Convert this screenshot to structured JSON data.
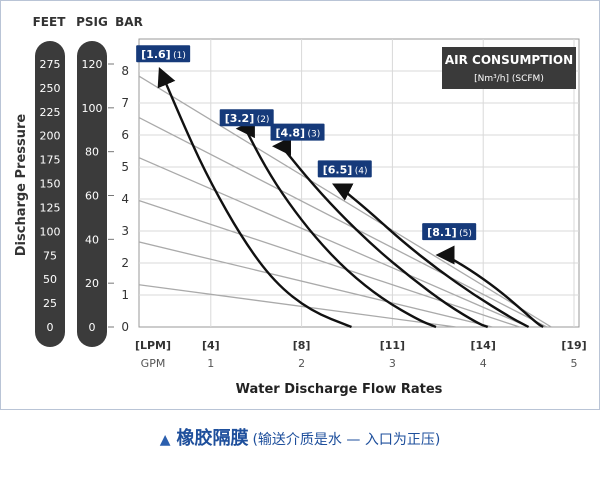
{
  "header": {
    "feet_label": "FEET",
    "psig_label": "PSIG",
    "bar_label": "BAR"
  },
  "y_axis_title": "Discharge Pressure",
  "feet_ticks": [
    "275",
    "250",
    "225",
    "200",
    "175",
    "150",
    "125",
    "100",
    "75",
    "50",
    "25",
    "0"
  ],
  "psig_ticks": [
    "120",
    "100",
    "80",
    "60",
    "40",
    "20",
    "0"
  ],
  "air_box": {
    "title": "AIR CONSUMPTION",
    "unit_html": "[Nm³/h] (SCFM)"
  },
  "colors": {
    "navy": "#163a7a",
    "bar_pill": "#3b3b3b",
    "grid": "#d9d9d9",
    "line_gray": "#aaaaaa",
    "curve": "#111111",
    "caption_blue": "#1e4f9c"
  },
  "caption": {
    "title": "橡胶隔膜",
    "subtitle": "(输送介质是水 — 入口为正压)"
  },
  "chart_data": {
    "type": "line",
    "xlabel": "Water Discharge Flow Rates",
    "ylabel": "Discharge Pressure",
    "x_unit_label": "GPM",
    "x_lpm_unit_label": "[LPM]",
    "xlim": [
      0,
      5
    ],
    "ylim": [
      0,
      8.5
    ],
    "x_ticks": [
      "1",
      "2",
      "3",
      "4",
      "5"
    ],
    "x_lpm_ticks": [
      "[4]",
      "[8]",
      "[11]",
      "[14]",
      "[19]"
    ],
    "x_lpm_tick_values": [
      1,
      2,
      3,
      4,
      5
    ],
    "y_ticks": [
      "0",
      "1",
      "2",
      "3",
      "4",
      "5",
      "6",
      "7",
      "8"
    ],
    "grid": true,
    "series": [
      {
        "name": "[1.6] (1)",
        "points": [
          [
            0.47,
            7.85
          ],
          [
            0.75,
            6.0
          ],
          [
            1.0,
            4.5
          ],
          [
            1.35,
            2.75
          ],
          [
            1.7,
            1.4
          ],
          [
            2.1,
            0.5
          ],
          [
            2.55,
            0
          ]
        ]
      },
      {
        "name": "[3.2] (2)",
        "points": [
          [
            1.38,
            6.2
          ],
          [
            1.6,
            5.0
          ],
          [
            1.85,
            3.9
          ],
          [
            2.15,
            2.8
          ],
          [
            2.5,
            1.75
          ],
          [
            2.9,
            0.85
          ],
          [
            3.3,
            0.2
          ],
          [
            3.48,
            0
          ]
        ]
      },
      {
        "name": "[4.8] (3)",
        "points": [
          [
            1.78,
            5.65
          ],
          [
            2.05,
            4.7
          ],
          [
            2.4,
            3.6
          ],
          [
            2.8,
            2.5
          ],
          [
            3.2,
            1.55
          ],
          [
            3.6,
            0.7
          ],
          [
            3.95,
            0.1
          ],
          [
            4.05,
            0
          ]
        ]
      },
      {
        "name": "[6.5] (4)",
        "points": [
          [
            2.43,
            4.35
          ],
          [
            2.75,
            3.6
          ],
          [
            3.1,
            2.7
          ],
          [
            3.5,
            1.8
          ],
          [
            3.9,
            1.0
          ],
          [
            4.3,
            0.3
          ],
          [
            4.5,
            0
          ]
        ]
      },
      {
        "name": "[8.1] (5)",
        "points": [
          [
            3.58,
            2.25
          ],
          [
            3.85,
            1.8
          ],
          [
            4.15,
            1.2
          ],
          [
            4.4,
            0.6
          ],
          [
            4.6,
            0.1
          ],
          [
            4.66,
            0
          ]
        ]
      }
    ],
    "gray_lines": [
      {
        "points": [
          [
            0,
            8.2
          ],
          [
            4.75,
            0
          ]
        ]
      },
      {
        "points": [
          [
            0,
            6.85
          ],
          [
            4.7,
            0
          ]
        ]
      },
      {
        "points": [
          [
            0,
            5.55
          ],
          [
            4.5,
            0
          ]
        ]
      },
      {
        "points": [
          [
            0,
            4.15
          ],
          [
            4.4,
            0
          ]
        ]
      },
      {
        "points": [
          [
            0,
            2.8
          ],
          [
            4.1,
            0
          ]
        ]
      },
      {
        "points": [
          [
            0,
            1.4
          ],
          [
            3.7,
            0
          ]
        ]
      }
    ],
    "series_labels": [
      {
        "main": "[1.6]",
        "sub": "(1)",
        "anchor": [
          0.2,
          8.4
        ]
      },
      {
        "main": "[3.2]",
        "sub": "(2)",
        "anchor": [
          1.12,
          6.4
        ]
      },
      {
        "main": "[4.8]",
        "sub": "(3)",
        "anchor": [
          1.68,
          5.95
        ]
      },
      {
        "main": "[6.5]",
        "sub": "(4)",
        "anchor": [
          2.2,
          4.8
        ]
      },
      {
        "main": "[8.1]",
        "sub": "(5)",
        "anchor": [
          3.35,
          2.84
        ]
      }
    ]
  }
}
